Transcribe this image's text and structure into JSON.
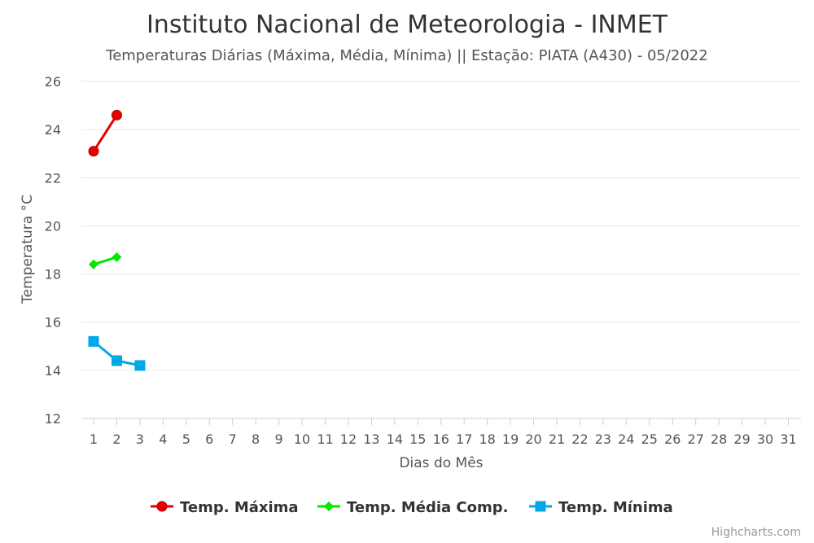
{
  "chart_data": {
    "type": "line",
    "title": "Instituto Nacional de Meteorologia - INMET",
    "subtitle": "Temperaturas Diárias (Máxima, Média, Mínima) || Estação: PIATA (A430) - 05/2022",
    "xlabel": "Dias do Mês",
    "ylabel": "Temperatura °C",
    "x": [
      1,
      2,
      3,
      4,
      5,
      6,
      7,
      8,
      9,
      10,
      11,
      12,
      13,
      14,
      15,
      16,
      17,
      18,
      19,
      20,
      21,
      22,
      23,
      24,
      25,
      26,
      27,
      28,
      29,
      30,
      31
    ],
    "xticks": [
      "1",
      "2",
      "3",
      "4",
      "5",
      "6",
      "7",
      "8",
      "9",
      "10",
      "11",
      "12",
      "13",
      "14",
      "15",
      "16",
      "17",
      "18",
      "19",
      "20",
      "21",
      "22",
      "23",
      "24",
      "25",
      "26",
      "27",
      "28",
      "29",
      "30",
      "31"
    ],
    "yticks": [
      "12",
      "14",
      "16",
      "18",
      "20",
      "22",
      "24",
      "26"
    ],
    "ylim": [
      12,
      26
    ],
    "grid": true,
    "legend_position": "bottom-center",
    "series": [
      {
        "name": "Temp. Máxima",
        "color": "#e80000",
        "marker": "circle",
        "x": [
          1,
          2
        ],
        "values": [
          23.1,
          24.6
        ]
      },
      {
        "name": "Temp. Média Comp.",
        "color": "#00e800",
        "marker": "diamond",
        "x": [
          1,
          2
        ],
        "values": [
          18.4,
          18.7
        ]
      },
      {
        "name": "Temp. Mínima",
        "color": "#00a8e8",
        "marker": "square",
        "x": [
          1,
          2,
          3
        ],
        "values": [
          15.2,
          14.4,
          14.2
        ]
      }
    ],
    "credits": "Highcharts.com"
  }
}
